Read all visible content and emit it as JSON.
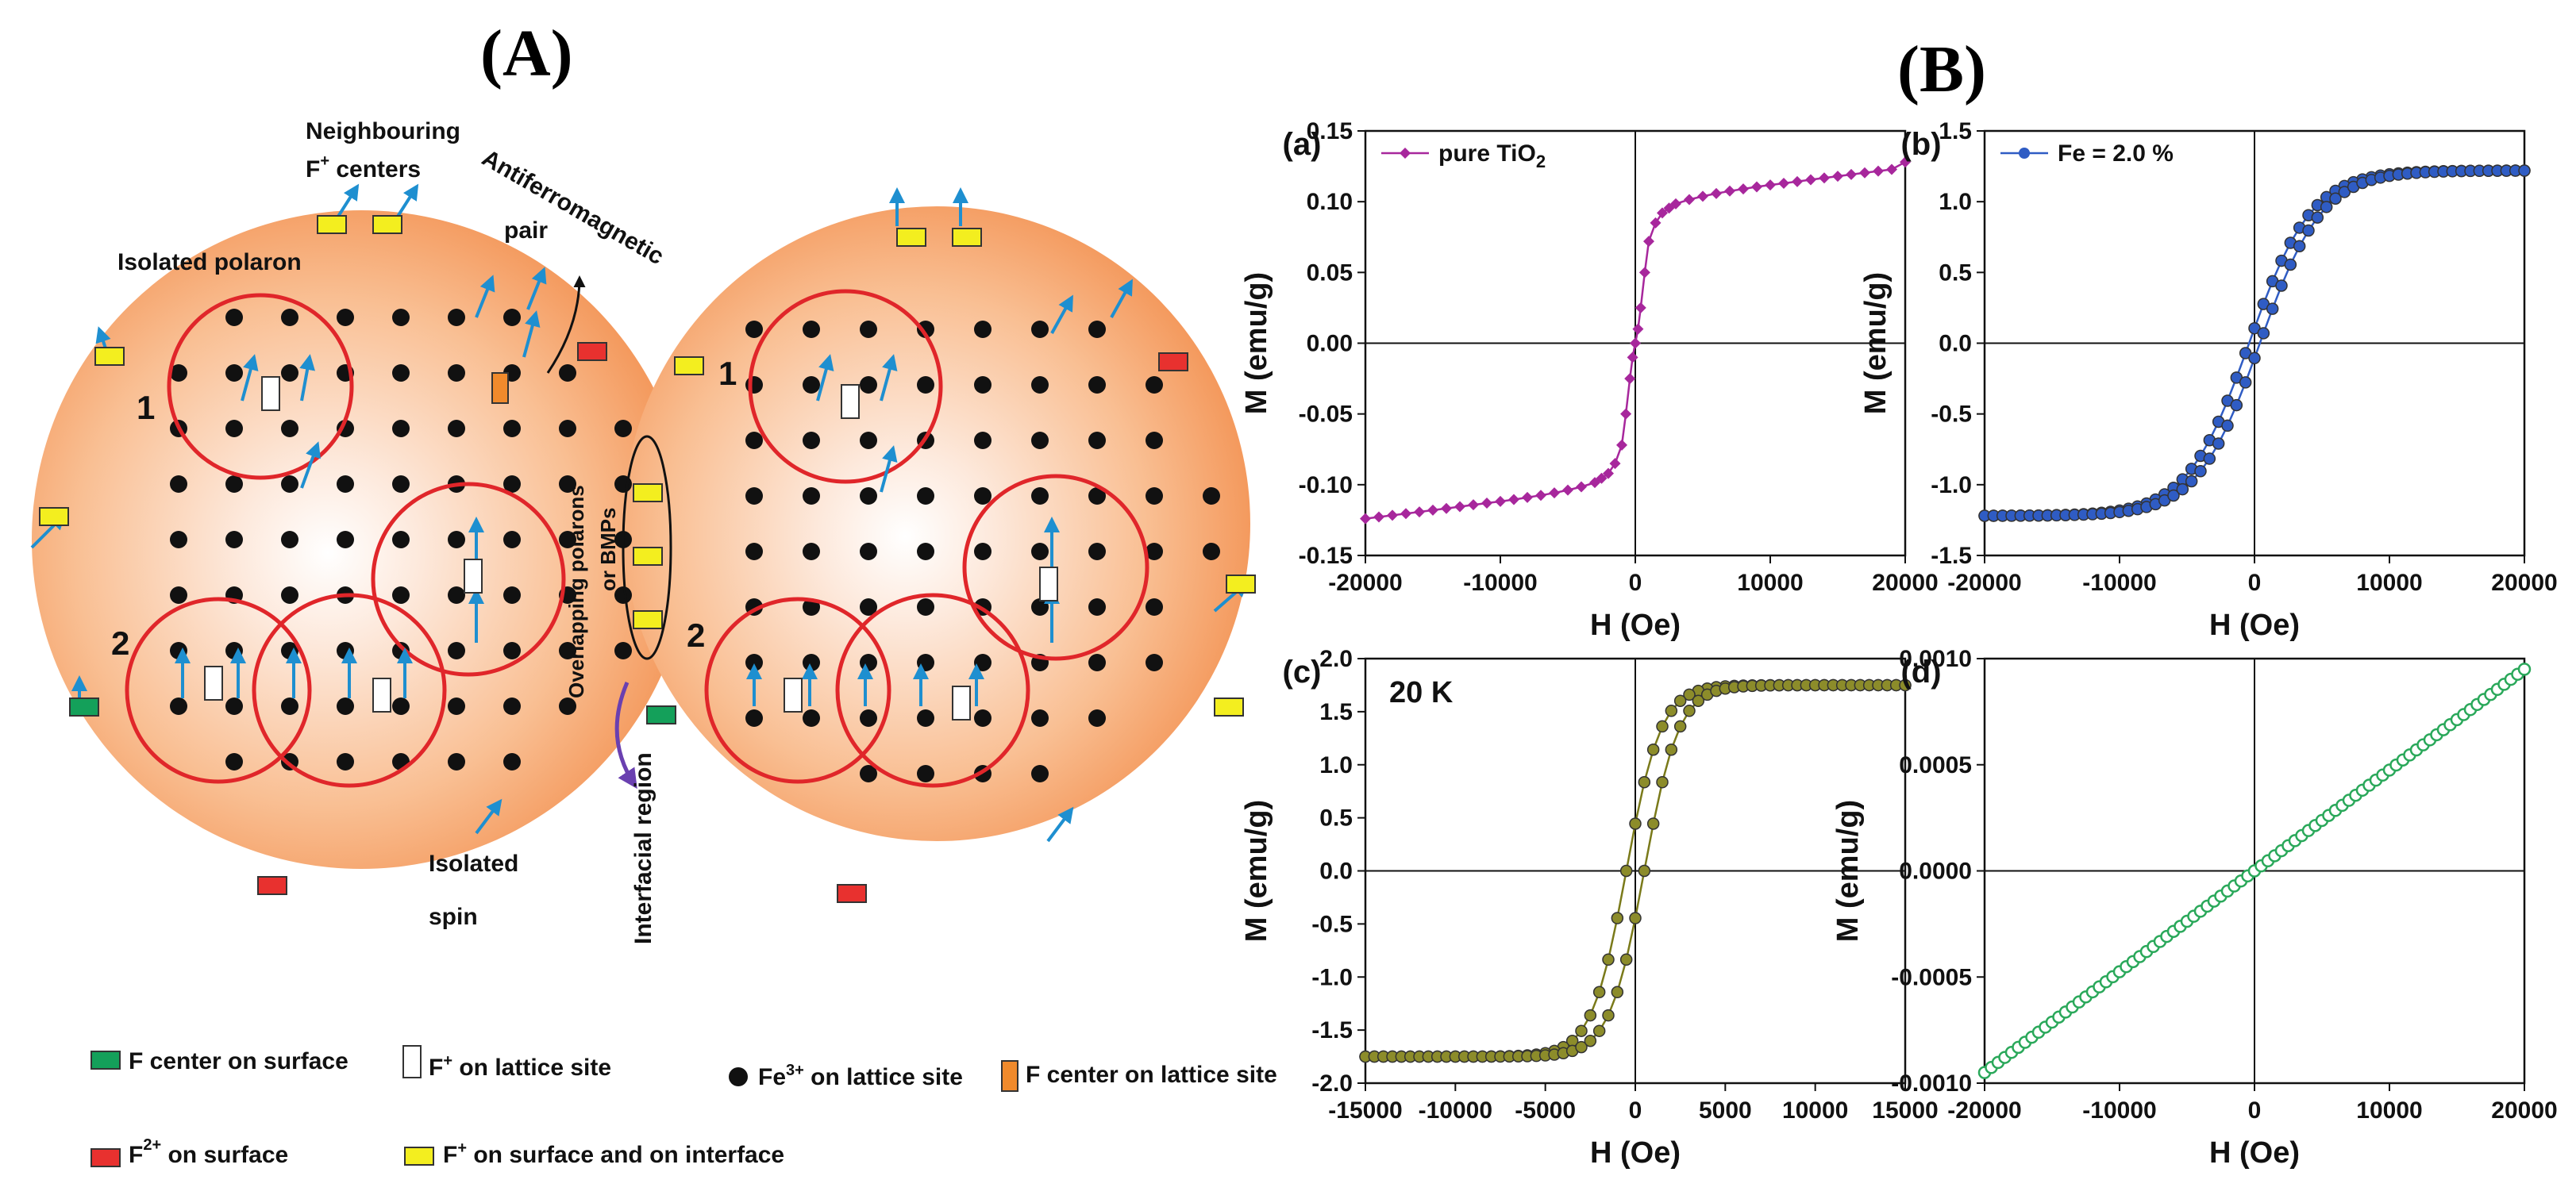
{
  "panels": {
    "A": "(A)",
    "B": "(B)"
  },
  "schematic": {
    "labels": {
      "neighbouring": "Neighbouring",
      "f_centers_prefix": "F",
      "f_centers_sup": "+",
      "f_centers_suffix": " centers",
      "antiferro": "Antiferromagnetic",
      "pair": "pair",
      "isolated_polaron": "Isolated polaron",
      "overlapping_1": "Overlapping polarons",
      "overlapping_2": "or BMPs",
      "interfacial": "Interfacial region",
      "isolated": "Isolated",
      "spin": "spin",
      "num1_left": "1",
      "num2_left": "2",
      "num1_right": "1",
      "num2_right": "2"
    },
    "legend": {
      "f_center_surface": "F center on surface",
      "fplus_lattice_prefix": "F",
      "fplus_lattice_sup": "+",
      "fplus_lattice_suffix": " on lattice site",
      "fe3_prefix": "Fe",
      "fe3_sup": "3+",
      "fe3_suffix": " on lattice site",
      "f_center_lattice": "F center on lattice site",
      "f2_prefix": "F",
      "f2_sup": "2+",
      "f2_suffix": " on surface",
      "fplus_surface_prefix": "F",
      "fplus_surface_sup": "+",
      "fplus_surface_suffix": " on surface and on interface"
    },
    "colors": {
      "sphere_edge": "#f6a76b",
      "sphere_center": "#ffffff",
      "circle": "#e0262a",
      "arrow": "#1e8fd0",
      "f_center_surface": "#14a05a",
      "f2_surface": "#e8312f",
      "f_center_lattice": "#f08a2c",
      "fplus_surface": "#f3ee1f"
    }
  },
  "chart_data": [
    {
      "id": "a",
      "label": "(a)",
      "type": "scatter",
      "series": [
        {
          "name": "pure TiO",
          "name_sub": "2",
          "color": "#a7279c",
          "marker": "diamond",
          "x": [
            -20000,
            -19000,
            -18000,
            -17000,
            -16000,
            -15000,
            -14000,
            -13000,
            -12000,
            -11000,
            -10000,
            -9000,
            -8000,
            -7000,
            -6000,
            -5000,
            -4000,
            -3000,
            -2500,
            -2000,
            -1500,
            -1000,
            -700,
            -400,
            -200,
            0,
            200,
            400,
            700,
            1000,
            1500,
            2000,
            2500,
            3000,
            4000,
            5000,
            6000,
            7000,
            8000,
            9000,
            10000,
            11000,
            12000,
            13000,
            14000,
            15000,
            16000,
            17000,
            18000,
            19000,
            20000
          ],
          "y": [
            -0.124,
            -0.1228,
            -0.1216,
            -0.1204,
            -0.1192,
            -0.118,
            -0.1168,
            -0.1155,
            -0.1142,
            -0.113,
            -0.1118,
            -0.1105,
            -0.109,
            -0.1075,
            -0.1058,
            -0.1038,
            -0.1015,
            -0.0985,
            -0.0955,
            -0.092,
            -0.085,
            -0.072,
            -0.05,
            -0.025,
            -0.01,
            0.0,
            0.01,
            0.025,
            0.05,
            0.072,
            0.085,
            0.092,
            0.0955,
            0.0985,
            0.1015,
            0.1038,
            0.1058,
            0.1075,
            0.109,
            0.1105,
            0.1118,
            0.113,
            0.1142,
            0.1155,
            0.1168,
            0.118,
            0.1192,
            0.1204,
            0.1216,
            0.1228,
            0.128
          ]
        }
      ],
      "xlim": [
        -20000,
        20000
      ],
      "ylim": [
        -0.15,
        0.15
      ],
      "xticks": [
        -20000,
        -10000,
        0,
        10000,
        20000
      ],
      "yticks": [
        -0.15,
        -0.1,
        -0.05,
        0.0,
        0.05,
        0.1,
        0.15
      ],
      "xtick_labels": [
        "-20000",
        "-10000",
        "0",
        "10000",
        "20000"
      ],
      "ytick_labels": [
        "-0.15",
        "-0.10",
        "-0.05",
        "0.00",
        "0.05",
        "0.10",
        "0.15"
      ],
      "xlabel": "H (Oe)",
      "ylabel": "M (emu/g)",
      "legend": "top-left"
    },
    {
      "id": "b",
      "label": "(b)",
      "type": "scatter",
      "series": [
        {
          "name": "Fe = 2.0 %",
          "color": "#2f5cc4",
          "marker": "circle",
          "hc": 400,
          "ms": 1.22,
          "sat_field": 12000,
          "x_range": [
            -20000,
            20000
          ]
        }
      ],
      "xlim": [
        -20000,
        20000
      ],
      "ylim": [
        -1.5,
        1.5
      ],
      "xticks": [
        -20000,
        -10000,
        0,
        10000,
        20000
      ],
      "yticks": [
        -1.5,
        -1.0,
        -0.5,
        0.0,
        0.5,
        1.0,
        1.5
      ],
      "xtick_labels": [
        "-20000",
        "-10000",
        "0",
        "10000",
        "20000"
      ],
      "ytick_labels": [
        "-1.5",
        "-1.0",
        "-0.5",
        "0.0",
        "0.5",
        "1.0",
        "1.5"
      ],
      "xlabel": "H (Oe)",
      "ylabel": "M (emu/g)",
      "legend": "top-left"
    },
    {
      "id": "c",
      "label": "(c)",
      "annotation": "20 K",
      "type": "scatter",
      "series": [
        {
          "name": "20 K",
          "color": "#7a7a1a",
          "fill": "#8c8c2a",
          "marker": "circle",
          "hc": 500,
          "ms": 1.75,
          "sat_field": 5000,
          "x_range": [
            -15000,
            15000
          ]
        }
      ],
      "xlim": [
        -15000,
        15000
      ],
      "ylim": [
        -2.0,
        2.0
      ],
      "xticks": [
        -15000,
        -10000,
        -5000,
        0,
        5000,
        10000,
        15000
      ],
      "yticks": [
        -2.0,
        -1.5,
        -1.0,
        -0.5,
        0.0,
        0.5,
        1.0,
        1.5,
        2.0
      ],
      "xtick_labels": [
        "-15000",
        "-10000",
        "-5000",
        "0",
        "5000",
        "10000",
        "15000"
      ],
      "ytick_labels": [
        "-2.0",
        "-1.5",
        "-1.0",
        "-0.5",
        "0.0",
        "0.5",
        "1.0",
        "1.5",
        "2.0"
      ],
      "xlabel": "H (Oe)",
      "ylabel": "M (emu/g)"
    },
    {
      "id": "d",
      "label": "(d)",
      "type": "scatter",
      "series": [
        {
          "color": "#2aa85a",
          "marker": "open-circle",
          "slope": 4.75e-08,
          "x_range": [
            -20000,
            20000
          ]
        }
      ],
      "xlim": [
        -20000,
        20000
      ],
      "ylim": [
        -0.001,
        0.001
      ],
      "xticks": [
        -20000,
        -10000,
        0,
        10000,
        20000
      ],
      "yticks": [
        -0.001,
        -0.0005,
        0.0,
        0.0005,
        0.001
      ],
      "xtick_labels": [
        "-20000",
        "-10000",
        "0",
        "10000",
        "20000"
      ],
      "ytick_labels": [
        "-0.0010",
        "-0.0005",
        "0.0000",
        "0.0005",
        "0.0010"
      ],
      "xlabel": "H (Oe)",
      "ylabel": "M (emu/g)"
    }
  ]
}
